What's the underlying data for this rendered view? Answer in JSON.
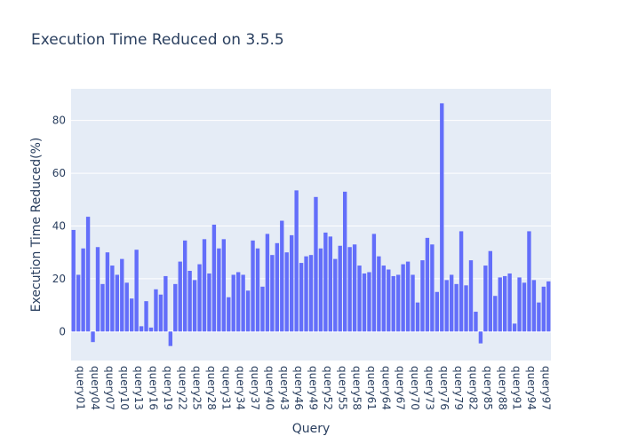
{
  "chart_data": {
    "type": "bar",
    "title": "Execution Time Reduced on 3.5.5",
    "xlabel": "Query",
    "ylabel": "Execution Time Reduced(%)",
    "ylim": [
      -11,
      92
    ],
    "yticks": [
      0,
      20,
      40,
      60,
      80
    ],
    "grid": true,
    "bar_color": "#636efa",
    "plot_bg": "#e5ecf6",
    "categories": [
      "query01",
      "query02",
      "query03",
      "query04",
      "query05",
      "query06",
      "query07",
      "query08",
      "query09",
      "query10",
      "query11",
      "query12",
      "query13",
      "query14",
      "query15",
      "query16",
      "query17",
      "query18",
      "query19",
      "query20",
      "query21",
      "query22",
      "query23",
      "query24",
      "query25",
      "query26",
      "query27",
      "query28",
      "query29",
      "query30",
      "query31",
      "query32",
      "query33",
      "query34",
      "query35",
      "query36",
      "query37",
      "query38",
      "query39",
      "query40",
      "query41",
      "query42",
      "query43",
      "query44",
      "query45",
      "query46",
      "query47",
      "query48",
      "query49",
      "query50",
      "query51",
      "query52",
      "query53",
      "query54",
      "query55",
      "query56",
      "query57",
      "query58",
      "query59",
      "query60",
      "query61",
      "query62",
      "query63",
      "query64",
      "query65",
      "query66",
      "query67",
      "query68",
      "query69",
      "query70",
      "query71",
      "query72",
      "query73",
      "query74",
      "query75",
      "query76",
      "query77",
      "query78",
      "query79",
      "query80",
      "query81",
      "query82",
      "query83",
      "query84",
      "query85",
      "query86",
      "query87",
      "query88",
      "query89",
      "query90",
      "query91",
      "query92",
      "query93",
      "query94",
      "query95",
      "query96",
      "query97",
      "query98",
      "query99"
    ],
    "values": [
      38.5,
      21.5,
      31.5,
      43.5,
      -4,
      32,
      18,
      30,
      25,
      21.5,
      27.5,
      18.5,
      12.5,
      31,
      2,
      11.5,
      1.5,
      16,
      14,
      21,
      -5.5,
      18,
      26.5,
      34.5,
      23,
      19.5,
      25.5,
      35,
      22,
      40.5,
      31.5,
      35,
      13,
      21.5,
      22.5,
      21.5,
      15.5,
      34.5,
      31.5,
      17,
      37,
      29,
      33.5,
      42,
      30,
      36.5,
      53.5,
      26,
      28.5,
      29,
      51,
      31.5,
      37.5,
      36,
      27.5,
      32.5,
      53,
      32,
      33,
      25,
      22,
      22.5,
      37,
      28.5,
      25,
      23.5,
      21,
      21.5,
      25.5,
      26.5,
      21.5,
      11,
      27,
      35.5,
      33,
      15,
      86.5,
      19.5,
      21.5,
      18,
      38,
      17.5,
      27,
      7.5,
      -4.5,
      25,
      30.5,
      13.5,
      20.5,
      21,
      22,
      3,
      20.5,
      18.5,
      38,
      19.5,
      11,
      17,
      19
    ],
    "tick_labels": [
      "query01",
      "query04",
      "query07",
      "query10",
      "query13",
      "query16",
      "query19",
      "query22",
      "query25",
      "query28",
      "query31",
      "query34",
      "query37",
      "query40",
      "query43",
      "query46",
      "query49",
      "query52",
      "query55",
      "query58",
      "query61",
      "query64",
      "query67",
      "query70",
      "query73",
      "query76",
      "query79",
      "query82",
      "query85",
      "query88",
      "query91",
      "query94",
      "query97"
    ]
  }
}
